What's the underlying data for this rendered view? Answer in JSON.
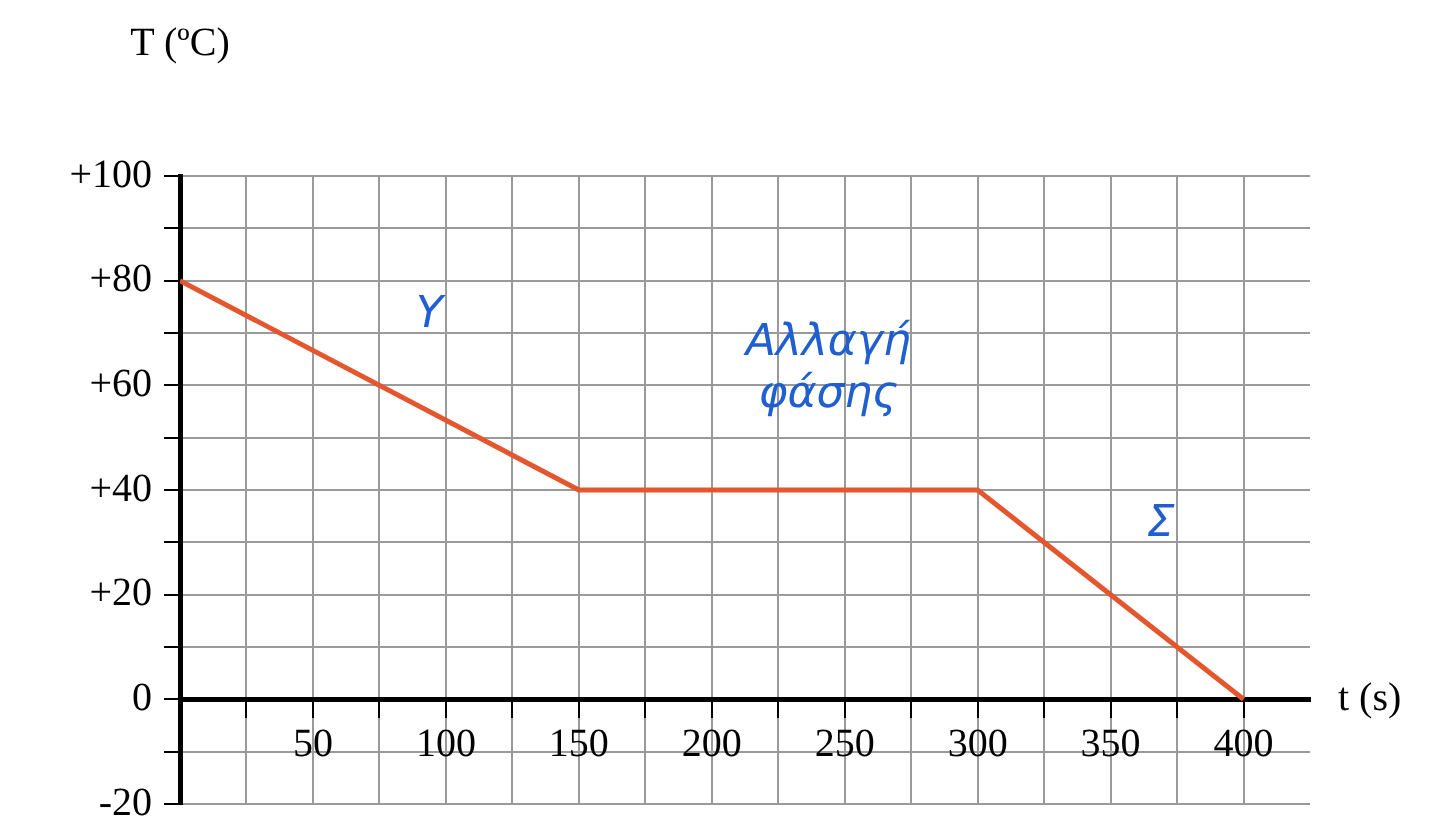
{
  "chart_data": {
    "type": "line",
    "xlabel": "t (s)",
    "ylabel": "T (ºC)",
    "x": [
      0,
      150,
      300,
      400
    ],
    "series": [
      {
        "color": "#e4572e",
        "values": [
          80,
          40,
          40,
          0
        ]
      }
    ],
    "xlim": [
      0,
      425
    ],
    "ylim": [
      -20,
      100
    ],
    "xticks": [
      {
        "value": 25,
        "label": null
      },
      50,
      {
        "value": 75,
        "label": null
      },
      100,
      {
        "value": 125,
        "label": null
      },
      150,
      {
        "value": 175,
        "label": null
      },
      200,
      {
        "value": 225,
        "label": null
      },
      250,
      {
        "value": 275,
        "label": null
      },
      300,
      {
        "value": 325,
        "label": null
      },
      350,
      {
        "value": 375,
        "label": null
      },
      400
    ],
    "yticks": [
      {
        "value": -20,
        "label": "-20"
      },
      {
        "value": -10,
        "label": null
      },
      {
        "value": 0,
        "label": "0"
      },
      {
        "value": 10,
        "label": null
      },
      {
        "value": 20,
        "label": "+20"
      },
      {
        "value": 30,
        "label": null
      },
      {
        "value": 40,
        "label": "+40"
      },
      {
        "value": 50,
        "label": null
      },
      {
        "value": 60,
        "label": "+60"
      },
      {
        "value": 70,
        "label": null
      },
      {
        "value": 80,
        "label": "+80"
      },
      {
        "value": 90,
        "label": null
      },
      {
        "value": 100,
        "label": "+100"
      }
    ],
    "grid": true,
    "legend": false,
    "marker": "none",
    "line_style": "solid",
    "annotations": [
      "Υ",
      "Αλλαγή φάσης",
      "Σ"
    ]
  }
}
